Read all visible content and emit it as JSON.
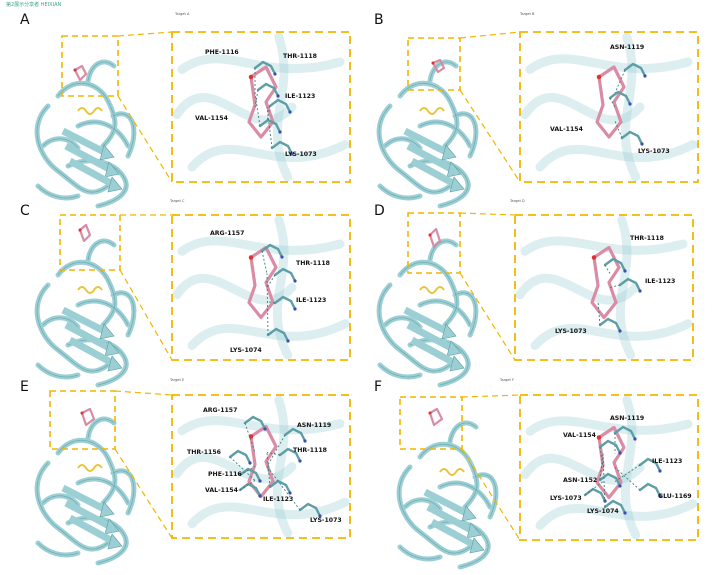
{
  "watermark": "第2展示分享者  HEIXIAN",
  "colors": {
    "protein": "#9ccfd4",
    "protein_dark": "#5e9ea6",
    "ligand": "#d98ca3",
    "box": "#f2b600",
    "hbond": "#3e7d7d"
  },
  "panels": [
    {
      "label": "A",
      "target": "Target A",
      "residues": [
        "PHE-1116",
        "THR-1118",
        "ILE-1123",
        "VAL-1154",
        "LYS-1073"
      ]
    },
    {
      "label": "B",
      "target": "Target B",
      "residues": [
        "ASN-1119",
        "VAL-1154",
        "LYS-1073"
      ]
    },
    {
      "label": "C",
      "target": "Target C",
      "residues": [
        "ARG-1157",
        "THR-1118",
        "ILE-1123",
        "LYS-1074"
      ]
    },
    {
      "label": "D",
      "target": "Target D",
      "residues": [
        "THR-1118",
        "ILE-1123",
        "LYS-1073"
      ]
    },
    {
      "label": "E",
      "target": "Target E",
      "residues": [
        "ARG-1157",
        "ASN-1119",
        "THR-1156",
        "THR-1118",
        "PHE-1116",
        "VAL-1154",
        "ILE-1123",
        "LYS-1073"
      ]
    },
    {
      "label": "F",
      "target": "Target F",
      "residues": [
        "ASN-1119",
        "VAL-1154",
        "ILE-1123",
        "ASN-1152",
        "GLU-1169",
        "LYS-1073",
        "LYS-1074"
      ]
    }
  ]
}
